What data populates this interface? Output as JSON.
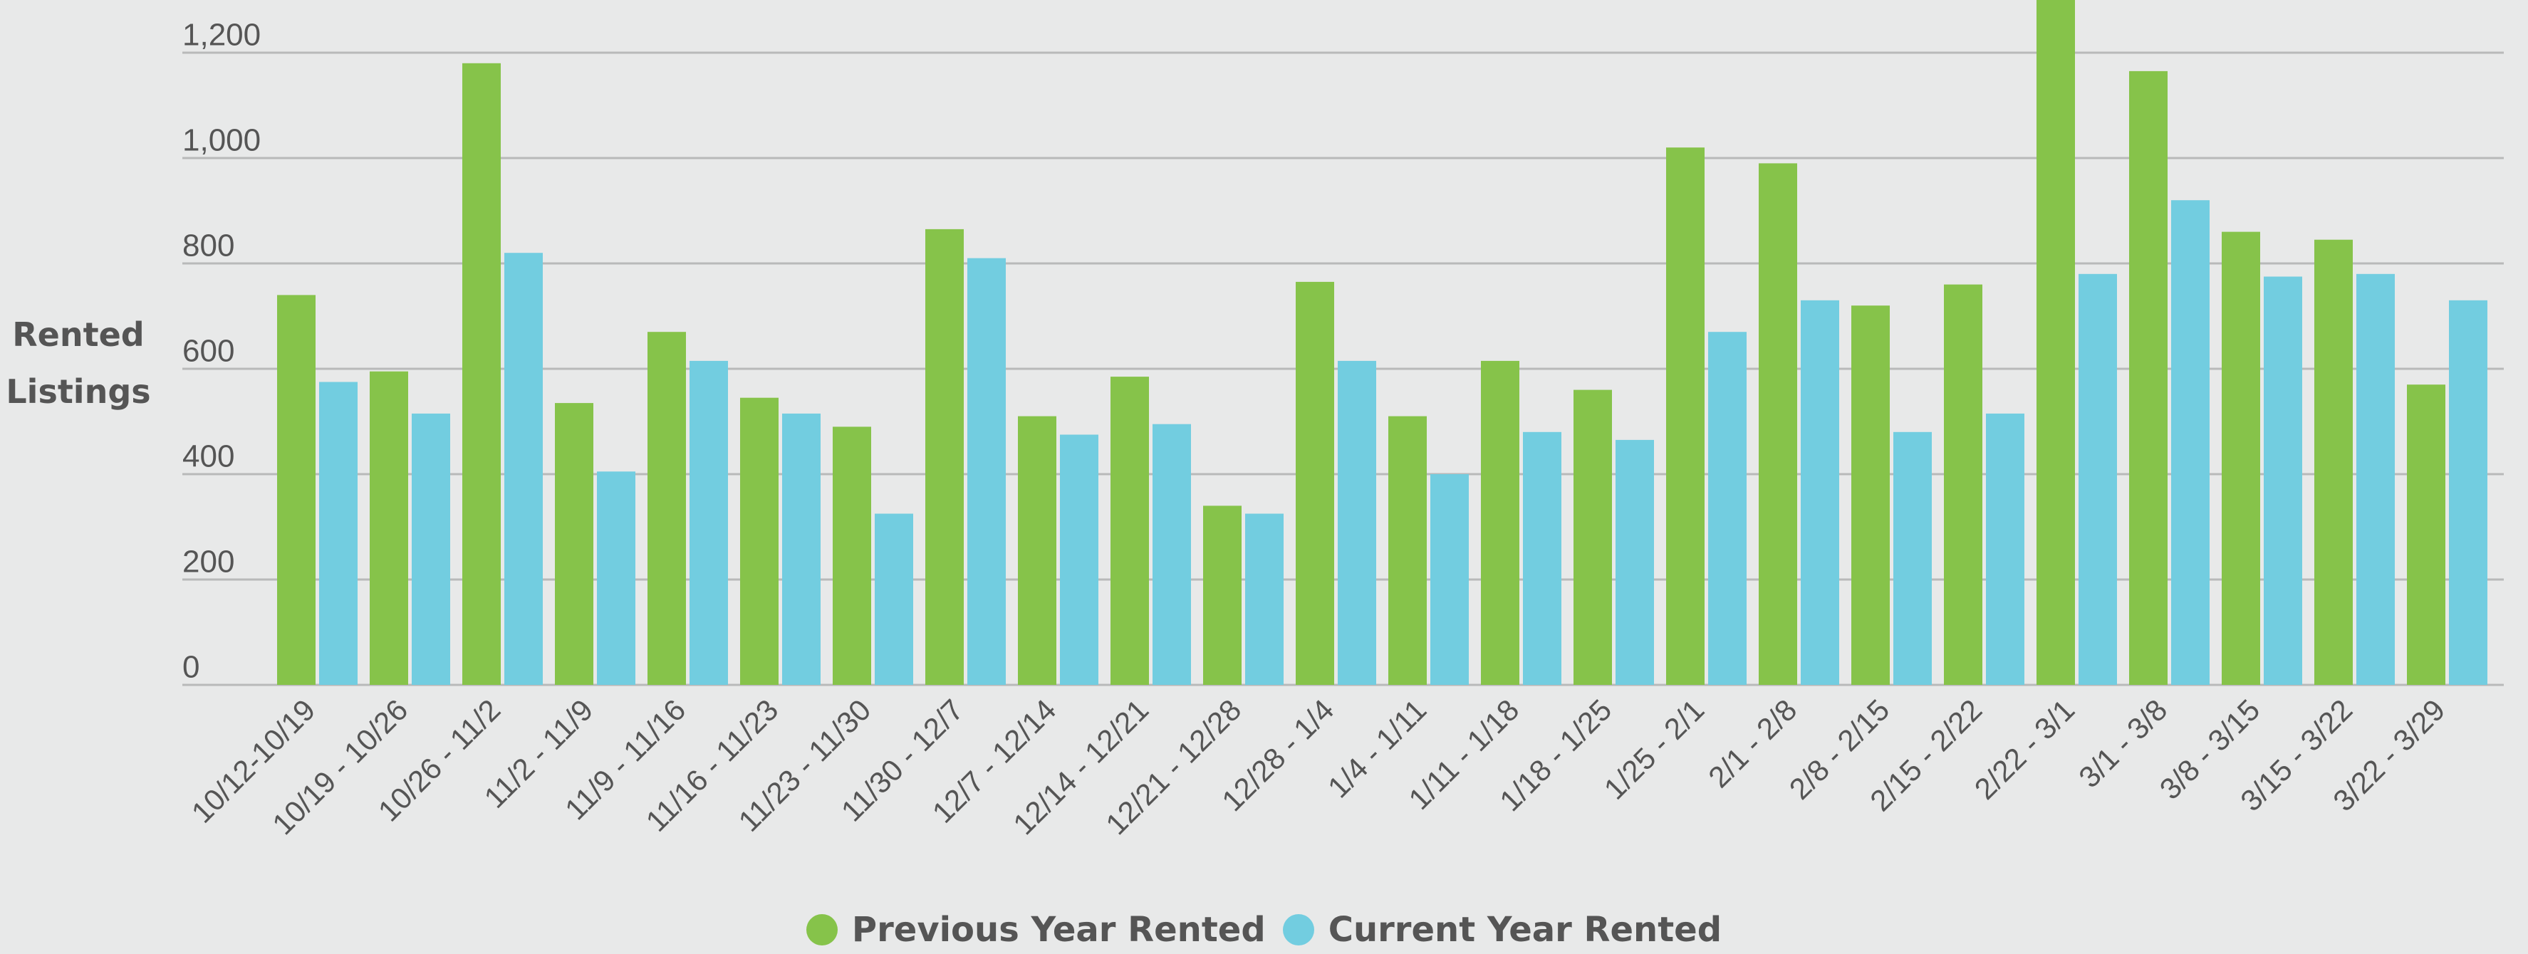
{
  "chart_data": {
    "type": "bar",
    "y_label": "Rented Listings",
    "categories": [
      "10/12-10/19",
      "10/19 - 10/26",
      "10/26 - 11/2",
      "11/2 - 11/9",
      "11/9 - 11/16",
      "11/16 - 11/23",
      "11/23 - 11/30",
      "11/30 - 12/7",
      "12/7 - 12/14",
      "12/14 - 12/21",
      "12/21 - 12/28",
      "12/28 - 1/4",
      "1/4 - 1/11",
      "1/11 - 1/18",
      "1/18 - 1/25",
      "1/25 - 2/1",
      "2/1 - 2/8",
      "2/8 - 2/15",
      "2/15 - 2/22",
      "2/22 - 3/1",
      "3/1 - 3/8",
      "3/8 - 3/15",
      "3/15 - 3/22",
      "3/22 - 3/29"
    ],
    "series": [
      {
        "name": "Previous Year Rented",
        "color": "#86c34a",
        "values": [
          740,
          595,
          1180,
          535,
          670,
          545,
          490,
          865,
          510,
          585,
          340,
          765,
          510,
          615,
          560,
          1020,
          990,
          720,
          760,
          1300,
          1165,
          860,
          845,
          570
        ]
      },
      {
        "name": "Current Year Rented",
        "color": "#72cde0",
        "values": [
          575,
          515,
          820,
          405,
          615,
          515,
          325,
          810,
          475,
          495,
          325,
          615,
          400,
          480,
          465,
          670,
          730,
          480,
          515,
          780,
          920,
          775,
          780,
          730
        ]
      }
    ],
    "ylim": [
      0,
      1300
    ],
    "yticks": [
      0,
      200,
      400,
      600,
      800,
      {
        "value": 1000,
        "label": "1,000"
      },
      {
        "value": 1200,
        "label": "1,200"
      }
    ],
    "grid": true
  }
}
